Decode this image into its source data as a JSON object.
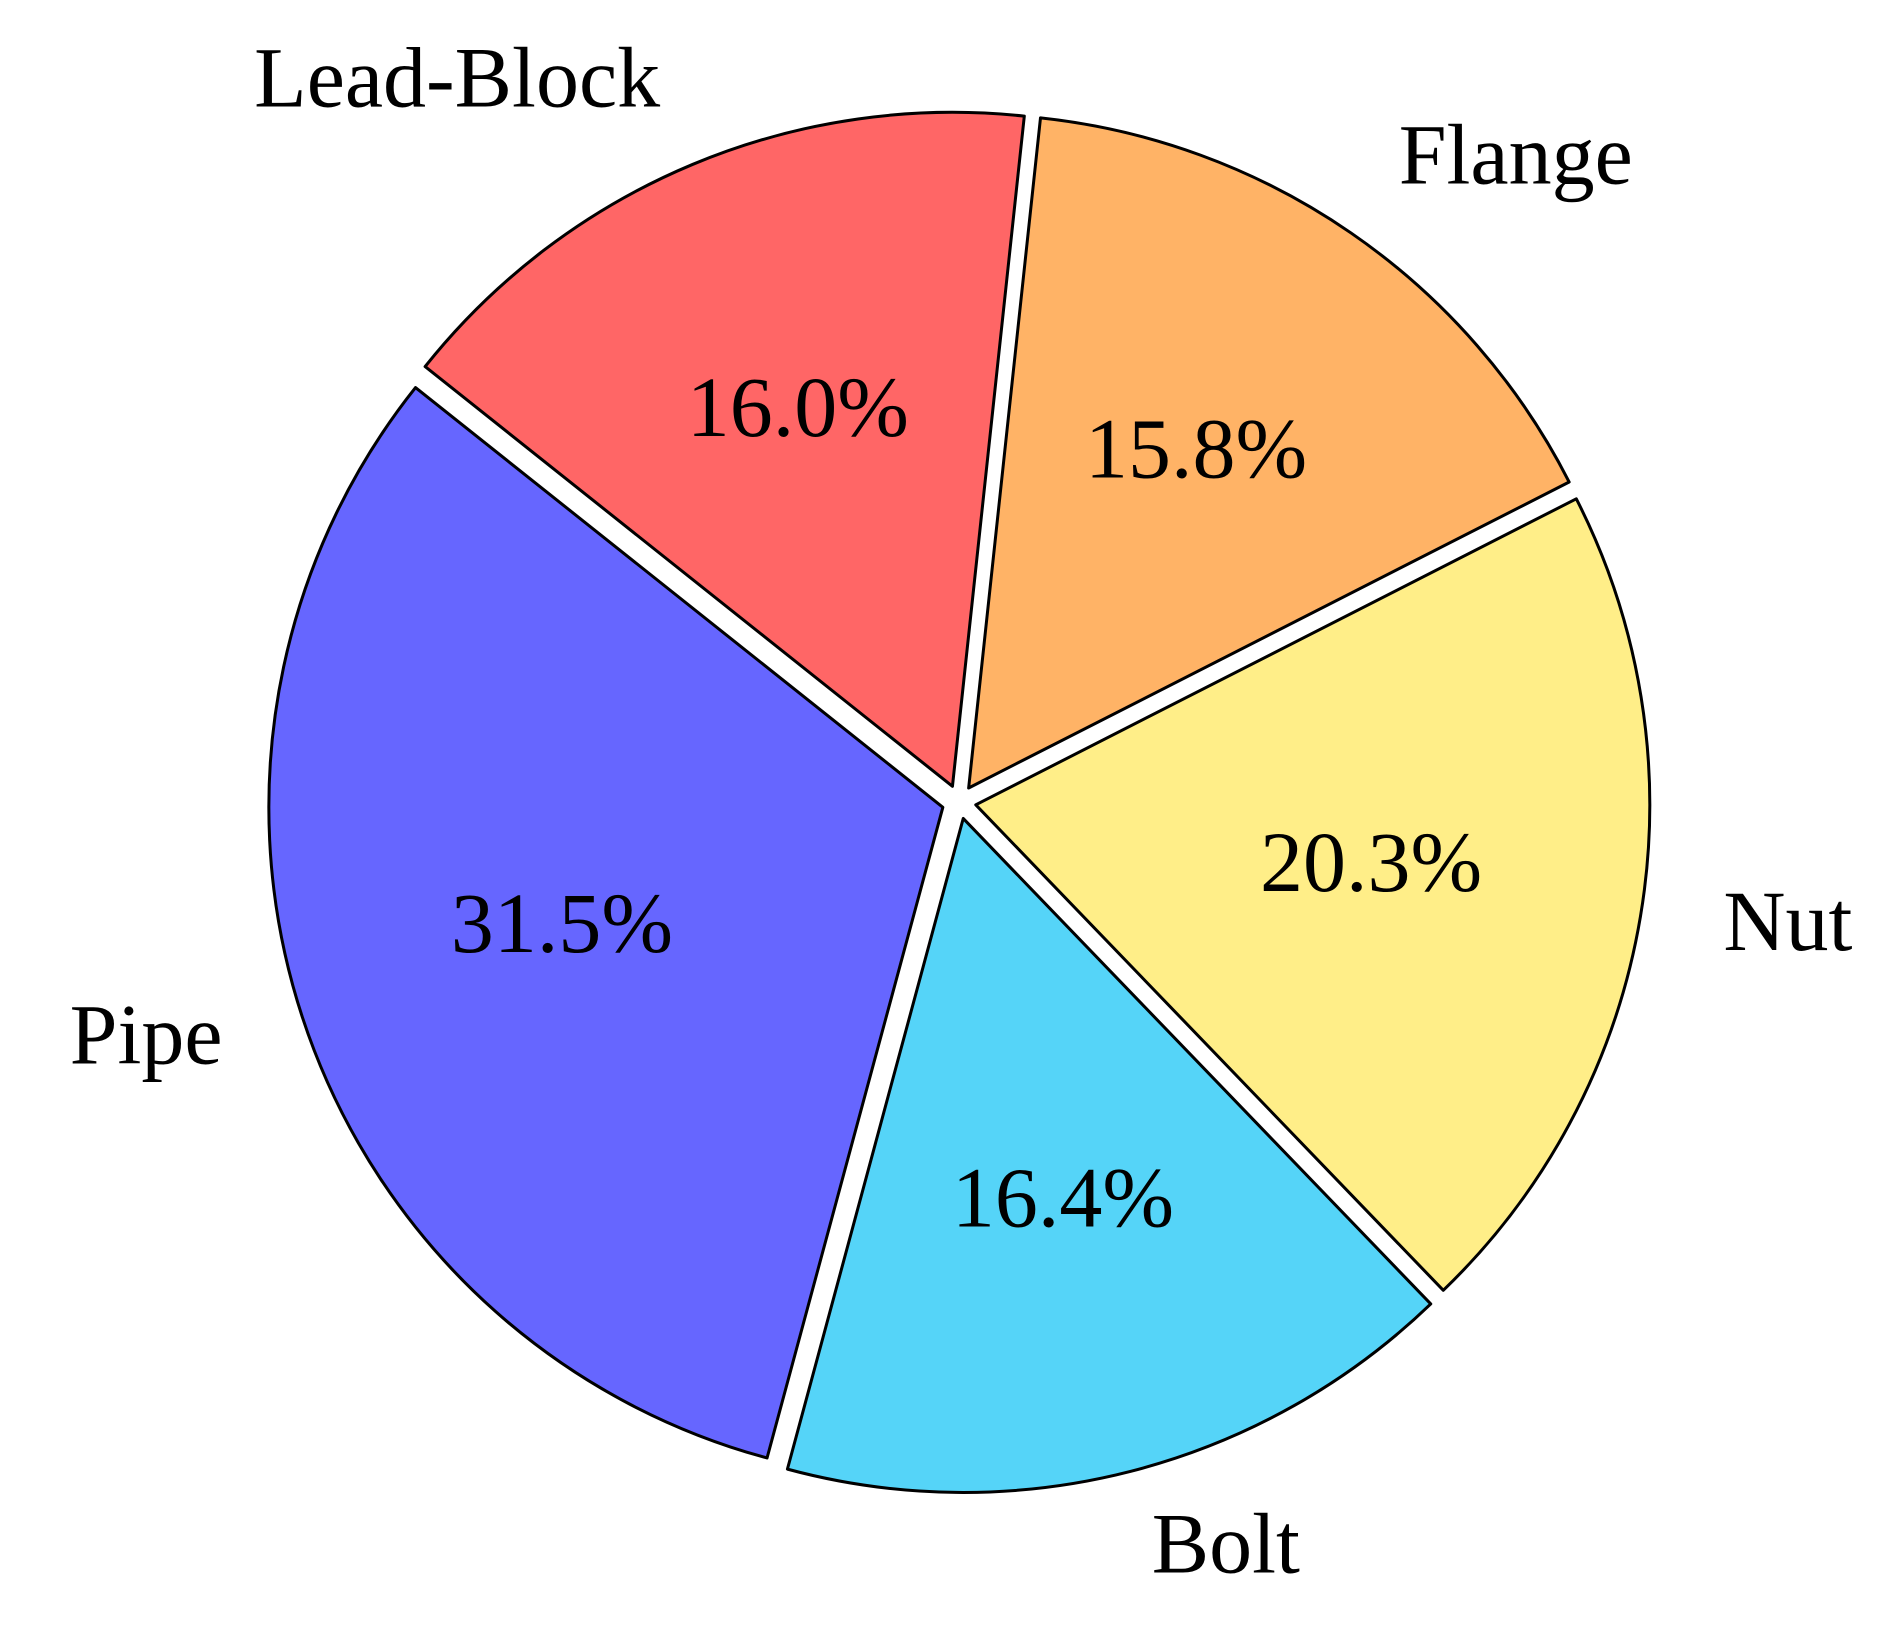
{
  "chart_data": {
    "type": "pie",
    "categories": [
      "Flange",
      "Lead-Block",
      "Pipe",
      "Bolt",
      "Nut"
    ],
    "values": [
      15.8,
      16.0,
      31.5,
      16.4,
      20.3
    ],
    "value_labels": [
      "15.8%",
      "16.0%",
      "31.5%",
      "16.4%",
      "20.3%"
    ],
    "colors": [
      "#ffb366",
      "#ff6666",
      "#6666ff",
      "#55d4f8",
      "#ffee88"
    ]
  }
}
